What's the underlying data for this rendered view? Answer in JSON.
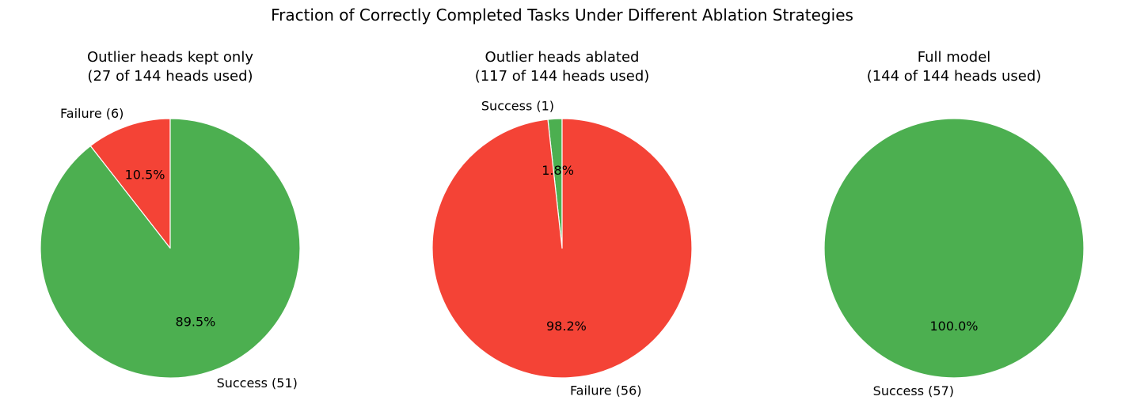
{
  "suptitle": "Fraction of Correctly Completed Tasks Under Different Ablation Strategies",
  "colors": {
    "success": "#4caf50",
    "failure": "#f44336",
    "edge": "#ffffff"
  },
  "chart_data": [
    {
      "type": "pie",
      "title": [
        "Outlier heads kept only",
        "(27 of 144 heads used)"
      ],
      "slices": [
        {
          "name": "Failure",
          "label": "Failure (6)",
          "value": 6,
          "pct_label": "10.5%",
          "color": "#f44336"
        },
        {
          "name": "Success",
          "label": "Success (51)",
          "value": 51,
          "pct_label": "89.5%",
          "color": "#4caf50"
        }
      ]
    },
    {
      "type": "pie",
      "title": [
        "Outlier heads ablated",
        "(117 of 144 heads used)"
      ],
      "slices": [
        {
          "name": "Success",
          "label": "Success (1)",
          "value": 1,
          "pct_label": "1.8%",
          "color": "#4caf50"
        },
        {
          "name": "Failure",
          "label": "Failure (56)",
          "value": 56,
          "pct_label": "98.2%",
          "color": "#f44336"
        }
      ]
    },
    {
      "type": "pie",
      "title": [
        "Full model",
        "(144 of 144 heads used)"
      ],
      "slices": [
        {
          "name": "Success",
          "label": "Success (57)",
          "value": 57,
          "pct_label": "100.0%",
          "color": "#4caf50"
        }
      ]
    }
  ]
}
